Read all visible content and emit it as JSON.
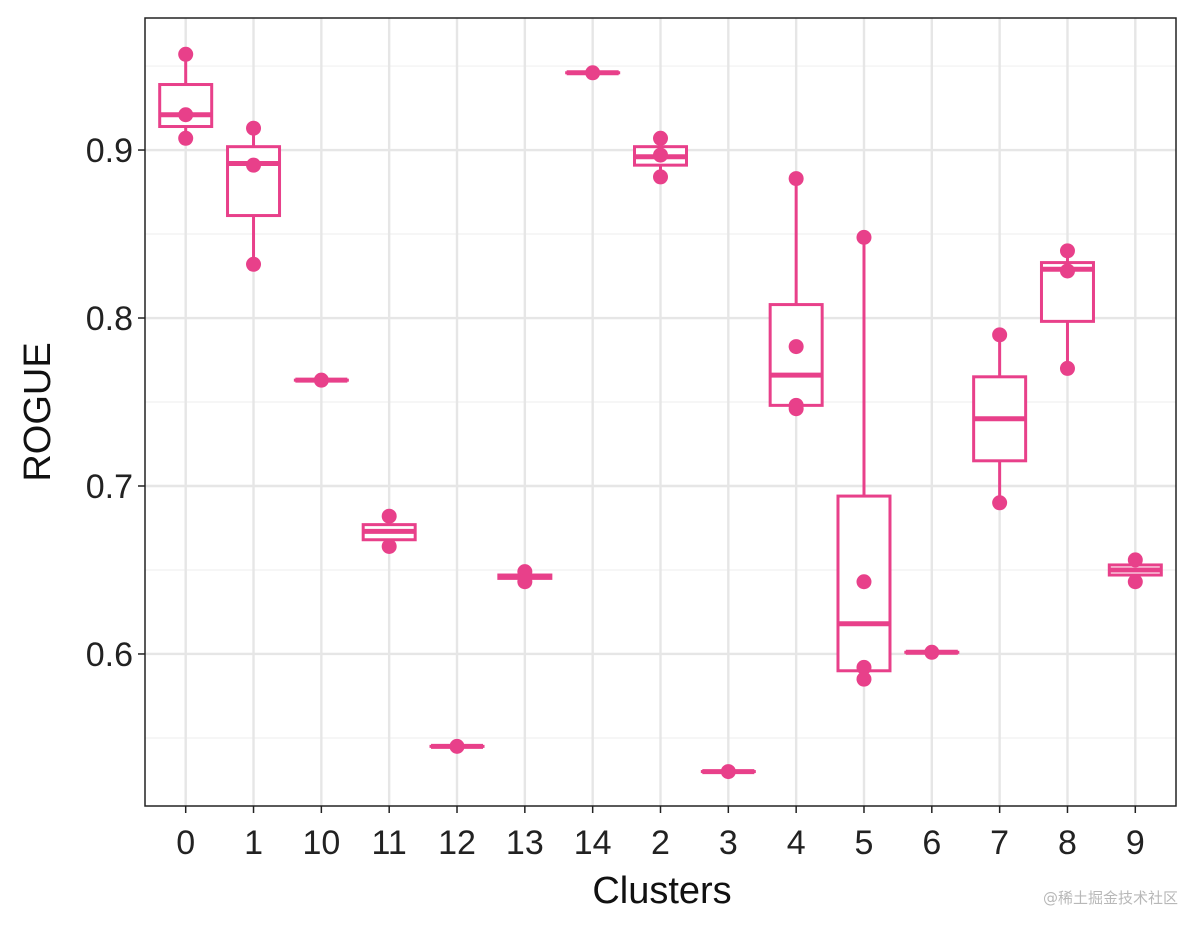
{
  "chart_data": {
    "type": "box",
    "xlabel": "Clusters",
    "ylabel": "ROGUE",
    "ylim": [
      0.5095,
      0.9786
    ],
    "yticks": [
      0.6,
      0.7,
      0.8,
      0.9
    ],
    "ytick_labels": [
      "0.6",
      "0.7",
      "0.8",
      "0.9"
    ],
    "grid": true,
    "color": "#e8408a",
    "categories": [
      "0",
      "1",
      "10",
      "11",
      "12",
      "13",
      "14",
      "2",
      "3",
      "4",
      "5",
      "6",
      "7",
      "8",
      "9"
    ],
    "boxes": [
      {
        "cluster": "0",
        "lower": 0.907,
        "q1": 0.914,
        "median": 0.921,
        "q3": 0.939,
        "upper": 0.957,
        "points": [
          0.957,
          0.921,
          0.907
        ]
      },
      {
        "cluster": "1",
        "lower": 0.832,
        "q1": 0.861,
        "median": 0.892,
        "q3": 0.902,
        "upper": 0.913,
        "points": [
          0.913,
          0.891,
          0.832
        ]
      },
      {
        "cluster": "10",
        "lower": 0.763,
        "q1": 0.763,
        "median": 0.763,
        "q3": 0.763,
        "upper": 0.763,
        "points": [
          0.763
        ]
      },
      {
        "cluster": "11",
        "lower": 0.664,
        "q1": 0.668,
        "median": 0.673,
        "q3": 0.677,
        "upper": 0.682,
        "points": [
          0.682,
          0.664
        ]
      },
      {
        "cluster": "12",
        "lower": 0.545,
        "q1": 0.545,
        "median": 0.545,
        "q3": 0.545,
        "upper": 0.545,
        "points": [
          0.545
        ]
      },
      {
        "cluster": "13",
        "lower": 0.643,
        "q1": 0.645,
        "median": 0.646,
        "q3": 0.647,
        "upper": 0.649,
        "points": [
          0.649,
          0.643
        ]
      },
      {
        "cluster": "14",
        "lower": 0.946,
        "q1": 0.946,
        "median": 0.946,
        "q3": 0.946,
        "upper": 0.946,
        "points": [
          0.946
        ]
      },
      {
        "cluster": "2",
        "lower": 0.884,
        "q1": 0.891,
        "median": 0.896,
        "q3": 0.902,
        "upper": 0.907,
        "points": [
          0.907,
          0.897,
          0.884
        ]
      },
      {
        "cluster": "3",
        "lower": 0.53,
        "q1": 0.53,
        "median": 0.53,
        "q3": 0.53,
        "upper": 0.53,
        "points": [
          0.53
        ]
      },
      {
        "cluster": "4",
        "lower": 0.746,
        "q1": 0.748,
        "median": 0.766,
        "q3": 0.808,
        "upper": 0.883,
        "points": [
          0.883,
          0.783,
          0.748,
          0.746
        ]
      },
      {
        "cluster": "5",
        "lower": 0.585,
        "q1": 0.59,
        "median": 0.618,
        "q3": 0.694,
        "upper": 0.848,
        "points": [
          0.848,
          0.643,
          0.592,
          0.585
        ]
      },
      {
        "cluster": "6",
        "lower": 0.601,
        "q1": 0.601,
        "median": 0.601,
        "q3": 0.601,
        "upper": 0.601,
        "points": [
          0.601
        ]
      },
      {
        "cluster": "7",
        "lower": 0.69,
        "q1": 0.715,
        "median": 0.74,
        "q3": 0.765,
        "upper": 0.79,
        "points": [
          0.79,
          0.69
        ]
      },
      {
        "cluster": "8",
        "lower": 0.77,
        "q1": 0.798,
        "median": 0.829,
        "q3": 0.833,
        "upper": 0.84,
        "points": [
          0.84,
          0.828,
          0.77
        ]
      },
      {
        "cluster": "9",
        "lower": 0.643,
        "q1": 0.647,
        "median": 0.65,
        "q3": 0.653,
        "upper": 0.656,
        "points": [
          0.656,
          0.643
        ]
      }
    ]
  },
  "watermark": "@稀土掘金技术社区"
}
